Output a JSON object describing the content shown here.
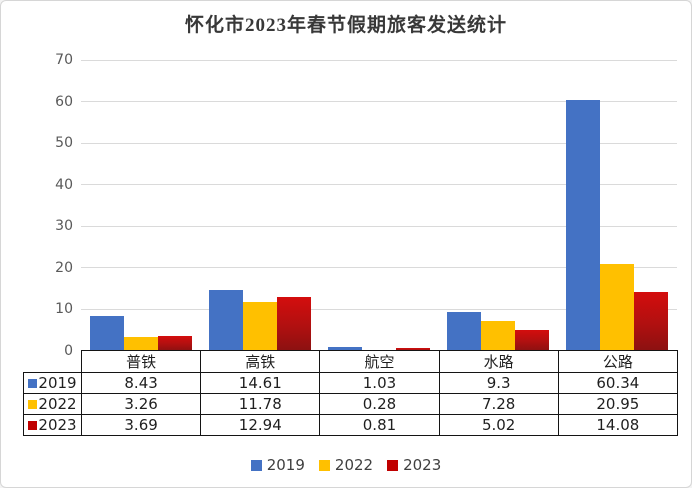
{
  "chart_data": {
    "type": "bar",
    "title": "怀化市2023年春节假期旅客发送统计",
    "categories": [
      "普铁",
      "高铁",
      "航空",
      "水路",
      "公路"
    ],
    "series": [
      {
        "name": "2019",
        "color": "#4472C4",
        "values": [
          8.43,
          14.61,
          1.03,
          9.3,
          60.34
        ]
      },
      {
        "name": "2022",
        "color": "#FFC000",
        "values": [
          3.26,
          11.78,
          0.28,
          7.28,
          20.95
        ]
      },
      {
        "name": "2023",
        "color": "#C00000",
        "values": [
          3.69,
          12.94,
          0.81,
          5.02,
          14.08
        ]
      }
    ],
    "ylim": [
      0,
      70
    ],
    "yticks": [
      0,
      10,
      20,
      30,
      40,
      50,
      60,
      70
    ],
    "grid": true,
    "legend_position": "bottom",
    "data_table_with_legend_keys": true,
    "colors": {
      "grid": "#dadada",
      "axis_label": "#595959",
      "table_border": "#141414",
      "bar_2023_gradient_top": "#D40D0D",
      "bar_2023_gradient_bottom": "#8B1111"
    }
  }
}
